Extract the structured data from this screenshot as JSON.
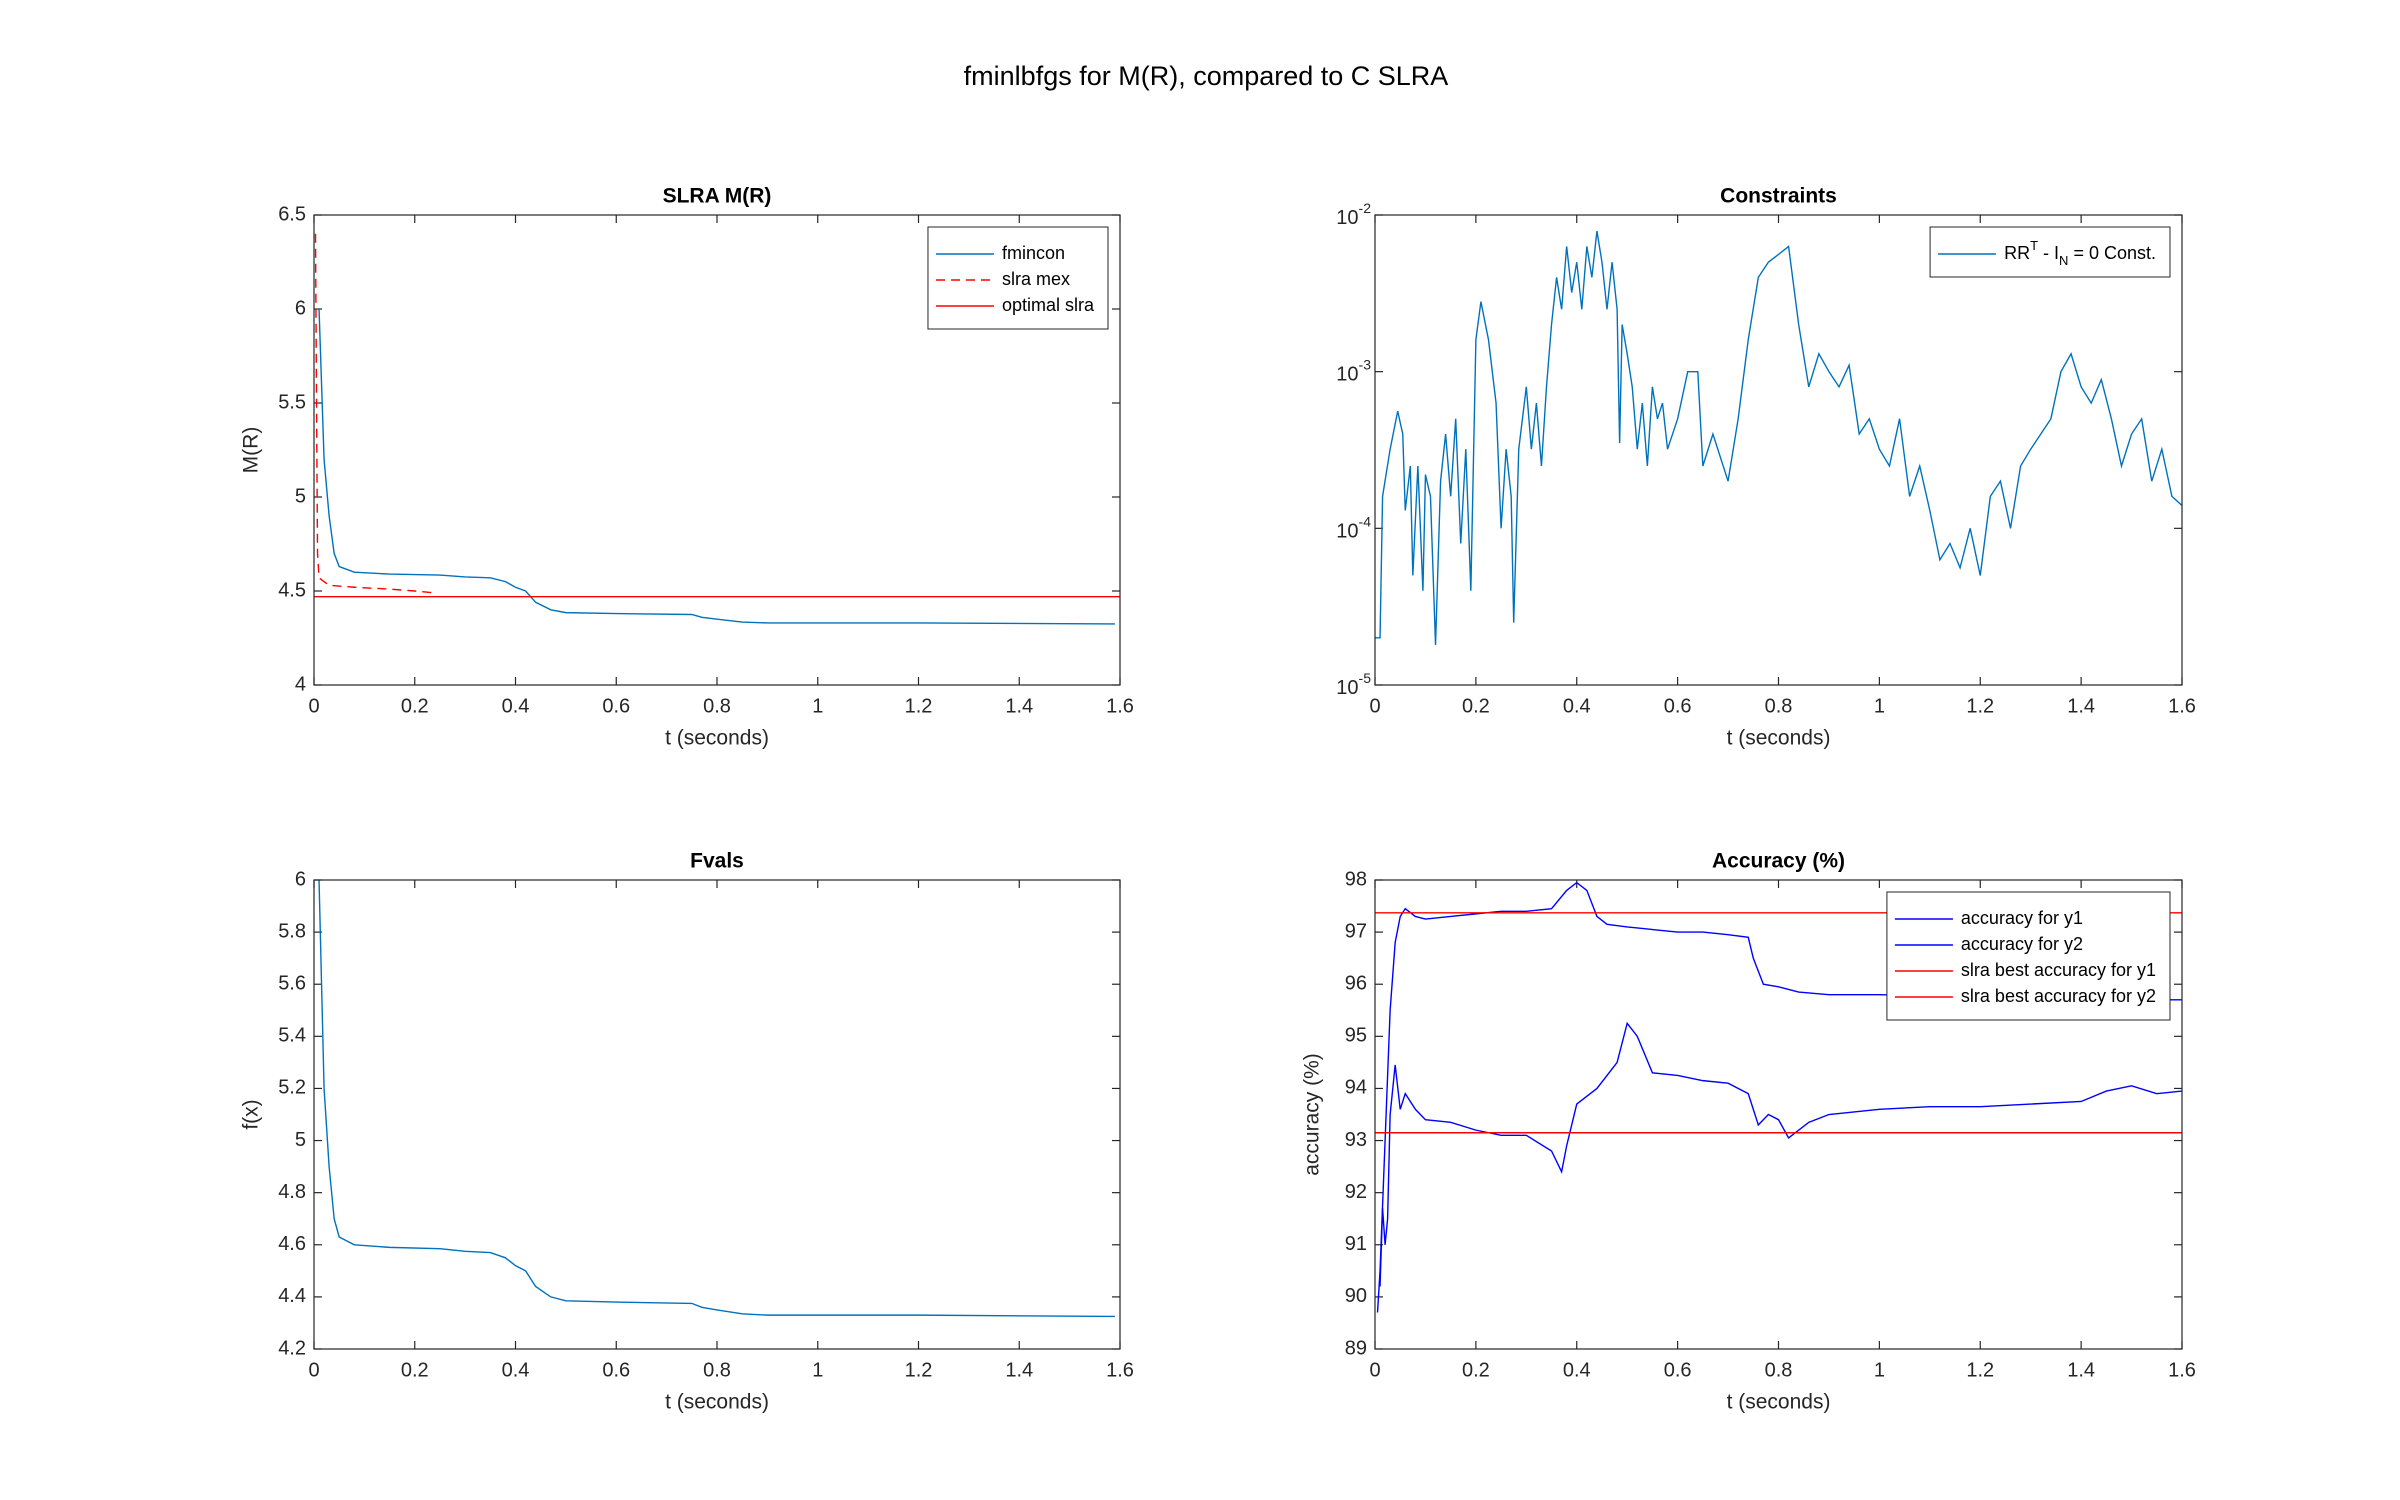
{
  "title": "fminlbfgs for M(R), compared to C SLRA",
  "chart_data": [
    {
      "type": "line",
      "title": "SLRA M(R)",
      "xlabel": "t (seconds)",
      "ylabel": "M(R)",
      "xlim": [
        0,
        1.6
      ],
      "xticks": [
        0,
        0.2,
        0.4,
        0.6,
        0.8,
        1,
        1.2,
        1.4,
        1.6
      ],
      "ylim": [
        4,
        6.5
      ],
      "yticks": [
        4,
        4.5,
        5,
        5.5,
        6,
        6.5
      ],
      "legend": "northeast",
      "series": [
        {
          "name": "fmincon",
          "color": "#0072bd",
          "x": [
            0.01,
            0.015,
            0.02,
            0.03,
            0.04,
            0.05,
            0.08,
            0.15,
            0.25,
            0.3,
            0.35,
            0.38,
            0.4,
            0.42,
            0.44,
            0.47,
            0.5,
            0.6,
            0.75,
            0.77,
            0.8,
            0.85,
            0.9,
            1.2,
            1.59
          ],
          "values": [
            6.0,
            5.6,
            5.2,
            4.9,
            4.7,
            4.63,
            4.6,
            4.59,
            4.585,
            4.575,
            4.57,
            4.55,
            4.52,
            4.5,
            4.44,
            4.4,
            4.385,
            4.38,
            4.375,
            4.36,
            4.35,
            4.335,
            4.33,
            4.33,
            4.325
          ]
        },
        {
          "name": "slra mex",
          "color": "#ff0000",
          "dashed": true,
          "x": [
            0.003,
            0.005,
            0.007,
            0.01,
            0.03,
            0.08,
            0.15,
            0.2,
            0.24
          ],
          "values": [
            6.4,
            5.5,
            4.7,
            4.57,
            4.53,
            4.52,
            4.51,
            4.5,
            4.49
          ]
        },
        {
          "name": "optimal slra",
          "color": "#ff0000",
          "x": [
            0,
            1.6
          ],
          "values": [
            4.47,
            4.47
          ]
        }
      ]
    },
    {
      "type": "line",
      "title": "Constraints",
      "log_y": true,
      "xlim": [
        0,
        1.6
      ],
      "xticks": [
        0,
        0.2,
        0.4,
        0.6,
        0.8,
        1,
        1.2,
        1.4,
        1.6
      ],
      "ylim": [
        1e-05,
        0.01
      ],
      "yticks": [
        {
          "value": 1e-05,
          "label": "10",
          "exponent": "-5"
        },
        {
          "value": 0.0001,
          "label": "10",
          "exponent": "-4"
        },
        {
          "value": 0.001,
          "label": "10",
          "exponent": "-3"
        },
        {
          "value": 0.01,
          "label": "10",
          "exponent": "-2"
        }
      ],
      "xlabel": "t (seconds)",
      "legend": "northeast",
      "series": [
        {
          "name": [
            {
              "text": "RR"
            },
            {
              "text": "T",
              "sup": true
            },
            {
              "text": " - I"
            },
            {
              "text": "N",
              "sub": true
            },
            {
              "text": " = 0 Const."
            }
          ],
          "color": "#0072bd",
          "x": [
            0,
            0.01,
            0.015,
            0.03,
            0.045,
            0.055,
            0.06,
            0.07,
            0.075,
            0.085,
            0.095,
            0.1,
            0.11,
            0.12,
            0.13,
            0.14,
            0.15,
            0.16,
            0.17,
            0.18,
            0.19,
            0.2,
            0.21,
            0.225,
            0.24,
            0.25,
            0.26,
            0.27,
            0.275,
            0.285,
            0.3,
            0.31,
            0.32,
            0.33,
            0.34,
            0.35,
            0.36,
            0.37,
            0.38,
            0.39,
            0.4,
            0.41,
            0.42,
            0.43,
            0.44,
            0.45,
            0.46,
            0.47,
            0.48,
            0.485,
            0.49,
            0.5,
            0.51,
            0.52,
            0.53,
            0.54,
            0.55,
            0.56,
            0.57,
            0.58,
            0.6,
            0.62,
            0.64,
            0.65,
            0.67,
            0.7,
            0.72,
            0.74,
            0.76,
            0.78,
            0.8,
            0.82,
            0.84,
            0.86,
            0.88,
            0.9,
            0.92,
            0.94,
            0.96,
            0.98,
            1.0,
            1.02,
            1.04,
            1.06,
            1.08,
            1.1,
            1.12,
            1.14,
            1.16,
            1.18,
            1.2,
            1.22,
            1.24,
            1.26,
            1.28,
            1.3,
            1.32,
            1.34,
            1.36,
            1.38,
            1.4,
            1.42,
            1.44,
            1.46,
            1.48,
            1.5,
            1.52,
            1.54,
            1.56,
            1.58,
            1.6
          ],
          "values": [
            2e-05,
            2e-05,
            0.00016,
            0.00032,
            0.00056,
            0.0004,
            0.00013,
            0.00025,
            5e-05,
            0.00025,
            4e-05,
            0.00022,
            0.00016,
            1.8e-05,
            0.0002,
            0.0004,
            0.00016,
            0.0005,
            8e-05,
            0.00032,
            4e-05,
            0.0016,
            0.0028,
            0.0016,
            0.00063,
            0.0001,
            0.00032,
            0.00016,
            2.5e-05,
            0.00032,
            0.0008,
            0.00032,
            0.00063,
            0.00025,
            0.0008,
            0.002,
            0.004,
            0.0025,
            0.0063,
            0.0032,
            0.005,
            0.0025,
            0.0063,
            0.004,
            0.0079,
            0.005,
            0.0025,
            0.005,
            0.0025,
            0.00035,
            0.002,
            0.0013,
            0.0008,
            0.00032,
            0.00063,
            0.00025,
            0.0008,
            0.0005,
            0.00063,
            0.00032,
            0.0005,
            0.001,
            0.001,
            0.00025,
            0.0004,
            0.0002,
            0.0005,
            0.0016,
            0.004,
            0.005,
            0.0056,
            0.0063,
            0.002,
            0.0008,
            0.0013,
            0.001,
            0.0008,
            0.0011,
            0.0004,
            0.0005,
            0.00032,
            0.00025,
            0.0005,
            0.00016,
            0.00025,
            0.00013,
            6.3e-05,
            8e-05,
            5.6e-05,
            0.0001,
            5e-05,
            0.00016,
            0.0002,
            0.0001,
            0.00025,
            0.00032,
            0.0004,
            0.0005,
            0.001,
            0.0013,
            0.0008,
            0.00063,
            0.00089,
            0.0005,
            0.00025,
            0.0004,
            0.0005,
            0.0002,
            0.00032,
            0.00016,
            0.00014
          ]
        }
      ]
    },
    {
      "type": "line",
      "title": "Fvals",
      "xlabel": "t (seconds)",
      "ylabel": "f(x)",
      "xlim": [
        0,
        1.6
      ],
      "xticks": [
        0,
        0.2,
        0.4,
        0.6,
        0.8,
        1,
        1.2,
        1.4,
        1.6
      ],
      "ylim": [
        4.2,
        6
      ],
      "yticks": [
        4.2,
        4.4,
        4.6,
        4.8,
        5,
        5.2,
        5.4,
        5.6,
        5.8,
        6
      ],
      "series": [
        {
          "color": "#0072bd",
          "x": [
            0.01,
            0.015,
            0.02,
            0.03,
            0.04,
            0.05,
            0.08,
            0.15,
            0.25,
            0.3,
            0.35,
            0.38,
            0.4,
            0.42,
            0.44,
            0.47,
            0.5,
            0.6,
            0.75,
            0.77,
            0.8,
            0.85,
            0.9,
            1.2,
            1.59
          ],
          "values": [
            6.0,
            5.6,
            5.2,
            4.9,
            4.7,
            4.63,
            4.6,
            4.59,
            4.585,
            4.575,
            4.57,
            4.55,
            4.52,
            4.5,
            4.44,
            4.4,
            4.385,
            4.38,
            4.375,
            4.36,
            4.35,
            4.335,
            4.33,
            4.33,
            4.325
          ]
        }
      ]
    },
    {
      "type": "line",
      "title": "Accuracy (%)",
      "xlabel": "t (seconds)",
      "ylabel": "accuracy (%)",
      "xlim": [
        0,
        1.6
      ],
      "xticks": [
        0,
        0.2,
        0.4,
        0.6,
        0.8,
        1,
        1.2,
        1.4,
        1.6
      ],
      "ylim": [
        89,
        98
      ],
      "yticks": [
        89,
        90,
        91,
        92,
        93,
        94,
        95,
        96,
        97,
        98
      ],
      "legend": "northeast",
      "series": [
        {
          "name": "accuracy for y1",
          "color": "#0000ff",
          "x": [
            0.005,
            0.01,
            0.02,
            0.03,
            0.04,
            0.05,
            0.06,
            0.08,
            0.1,
            0.15,
            0.2,
            0.25,
            0.3,
            0.35,
            0.38,
            0.4,
            0.42,
            0.44,
            0.46,
            0.5,
            0.55,
            0.6,
            0.65,
            0.7,
            0.74,
            0.75,
            0.77,
            0.8,
            0.84,
            0.9,
            1.0,
            1.2,
            1.4,
            1.6
          ],
          "values": [
            89.7,
            90.5,
            93,
            95.5,
            96.8,
            97.3,
            97.45,
            97.3,
            97.25,
            97.3,
            97.35,
            97.4,
            97.4,
            97.45,
            97.8,
            97.95,
            97.8,
            97.3,
            97.15,
            97.1,
            97.05,
            97.0,
            97.0,
            96.95,
            96.9,
            96.5,
            96.0,
            95.95,
            95.85,
            95.8,
            95.8,
            95.75,
            95.7,
            95.7
          ]
        },
        {
          "name": "accuracy for y2",
          "color": "#0000ff",
          "x": [
            0.01,
            0.015,
            0.02,
            0.025,
            0.03,
            0.04,
            0.05,
            0.06,
            0.08,
            0.1,
            0.15,
            0.2,
            0.25,
            0.3,
            0.35,
            0.37,
            0.38,
            0.4,
            0.44,
            0.48,
            0.5,
            0.52,
            0.55,
            0.6,
            0.65,
            0.7,
            0.74,
            0.76,
            0.78,
            0.8,
            0.82,
            0.86,
            0.9,
            1.0,
            1.1,
            1.2,
            1.3,
            1.4,
            1.45,
            1.5,
            1.55,
            1.6
          ],
          "values": [
            90.2,
            91.7,
            91.0,
            91.5,
            93.5,
            94.45,
            93.6,
            93.9,
            93.6,
            93.4,
            93.35,
            93.2,
            93.1,
            93.1,
            92.8,
            92.4,
            92.9,
            93.7,
            94.0,
            94.5,
            95.25,
            95.0,
            94.3,
            94.25,
            94.15,
            94.1,
            93.9,
            93.3,
            93.5,
            93.4,
            93.05,
            93.35,
            93.5,
            93.6,
            93.65,
            93.65,
            93.7,
            93.75,
            93.95,
            94.05,
            93.9,
            93.95
          ]
        },
        {
          "name": "slra best accuracy for y1",
          "color": "#ff0000",
          "x": [
            0,
            1.6
          ],
          "values": [
            97.37,
            97.37
          ]
        },
        {
          "name": "slra best accuracy for y2",
          "color": "#ff0000",
          "x": [
            0,
            1.6
          ],
          "values": [
            93.15,
            93.15
          ]
        }
      ]
    }
  ]
}
